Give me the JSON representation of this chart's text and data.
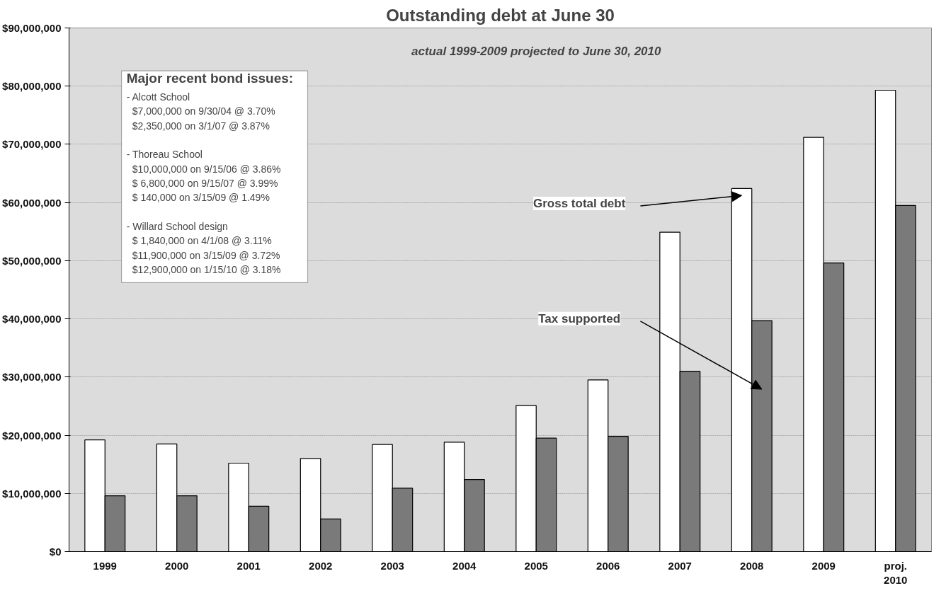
{
  "chart_data": {
    "type": "bar",
    "title": "Outstanding debt at June 30",
    "subtitle": "actual 1999-2009 projected to June 30, 2010",
    "categories": [
      "1999",
      "2000",
      "2001",
      "2002",
      "2003",
      "2004",
      "2005",
      "2006",
      "2007",
      "2008",
      "2009",
      "proj. 2010"
    ],
    "series": [
      {
        "color": "#ffffff",
        "values": [
          19200000,
          18500000,
          15200000,
          16000000,
          18400000,
          18800000,
          25100000,
          29500000,
          54900000,
          62400000,
          71200000,
          79300000
        ]
      },
      {
        "color": "#7a7a7a",
        "values": [
          9600000,
          9600000,
          7800000,
          5600000,
          10900000,
          12400000,
          19500000,
          19800000,
          31000000,
          39700000,
          49600000,
          59500000
        ]
      }
    ],
    "ylim": [
      0,
      90000000
    ],
    "yticks": [
      {
        "value": 0,
        "label": "$0"
      },
      {
        "value": 10000000,
        "label": "$10,000,000"
      },
      {
        "value": 20000000,
        "label": "$20,000,000"
      },
      {
        "value": 30000000,
        "label": "$30,000,000"
      },
      {
        "value": 40000000,
        "label": "$40,000,000"
      },
      {
        "value": 50000000,
        "label": "$50,000,000"
      },
      {
        "value": 60000000,
        "label": "$60,000,000"
      },
      {
        "value": 70000000,
        "label": "$70,000,000"
      },
      {
        "value": 80000000,
        "label": "$80,000,000"
      },
      {
        "value": 90000000,
        "label": "$90,000,000"
      }
    ],
    "grid": "y",
    "annotations": [
      "Gross total debt",
      "Tax supported",
      "Major recent bond issues:",
      "- Alcott School",
      "$7,000,000 on 9/30/04 @ 3.70%",
      "$2,350,000 on 3/1/07 @ 3.87%",
      "- Thoreau School",
      "$10,000,000 on 9/15/06 @ 3.86%",
      "$ 6,800,000 on 9/15/07 @ 3.99%",
      "$      140,000 on 3/15/09 @ 1.49%",
      "- Willard School design",
      "$ 1,840,000 on 4/1/08 @ 3.11%",
      "$11,900,000 on 3/15/09 @ 3.72%",
      "$12,900,000 on 1/15/10 @ 3.18%"
    ]
  }
}
